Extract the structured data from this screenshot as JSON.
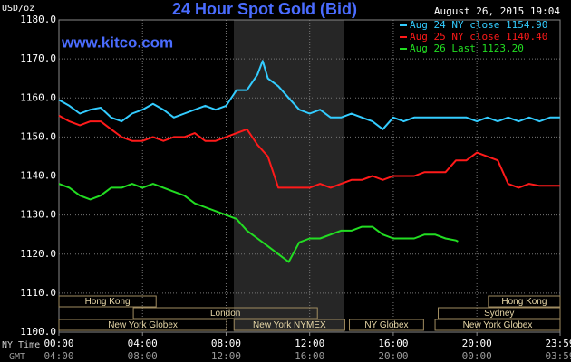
{
  "chart_data": {
    "type": "line",
    "title": "24 Hour Spot Gold (Bid)",
    "subtitle": "www.kitco.com",
    "timestamp": "August 26, 2015 19:04",
    "ylabel": "USD/oz",
    "xlabel": "NY Time",
    "x2label": "GMT",
    "grid": true,
    "legend": "upper right",
    "xlim": [
      0,
      23.983
    ],
    "ylim": [
      1100,
      1180
    ],
    "yticks": [
      {
        "value": 1100,
        "label": "1100.0"
      },
      {
        "value": 1110,
        "label": "1110.0"
      },
      {
        "value": 1120,
        "label": "1120.0"
      },
      {
        "value": 1130,
        "label": "1130.0"
      },
      {
        "value": 1140,
        "label": "1140.0"
      },
      {
        "value": 1150,
        "label": "1150.0"
      },
      {
        "value": 1160,
        "label": "1160.0"
      },
      {
        "value": 1170,
        "label": "1170.0"
      },
      {
        "value": 1180,
        "label": "1180.0"
      }
    ],
    "xticks": [
      {
        "value": 0,
        "label": "00:00"
      },
      {
        "value": 4,
        "label": "04:00"
      },
      {
        "value": 8,
        "label": "08:00"
      },
      {
        "value": 12,
        "label": "12:00"
      },
      {
        "value": 16,
        "label": "16:00"
      },
      {
        "value": 20,
        "label": "20:00"
      },
      {
        "value": 23.983,
        "label": "23:59"
      }
    ],
    "x2ticks": [
      {
        "value": 0,
        "label": "04:00"
      },
      {
        "value": 4,
        "label": "08:00"
      },
      {
        "value": 8,
        "label": "12:00"
      },
      {
        "value": 12,
        "label": "16:00"
      },
      {
        "value": 16,
        "label": "20:00"
      },
      {
        "value": 20,
        "label": "00:00"
      },
      {
        "value": 23.983,
        "label": "03:59"
      }
    ],
    "sessions": [
      [
        {
          "name": "Hong Kong",
          "start": 0,
          "end": 4.65
        },
        {
          "name": "Hong Kong",
          "start": 20.55,
          "end": 23.983
        }
      ],
      [
        {
          "name": "London",
          "start": 3.56,
          "end": 12.37
        },
        {
          "name": "Sydney",
          "start": 18.15,
          "end": 23.983
        }
      ],
      [
        {
          "name": "New York Globex",
          "start": 0,
          "end": 8.03
        },
        {
          "name": "New York NYMEX",
          "start": 8.38,
          "end": 13.68
        },
        {
          "name": "NY Globex",
          "start": 13.9,
          "end": 17.45
        },
        {
          "name": "New York Globex",
          "start": 18.0,
          "end": 23.983
        }
      ]
    ],
    "series": [
      {
        "name": "Aug 24 NY close 1154.90",
        "color": "#33ccff",
        "x": [
          0,
          0.5,
          1,
          1.5,
          2,
          2.5,
          3,
          3.5,
          4,
          4.5,
          5,
          5.5,
          6,
          6.5,
          7,
          7.5,
          8,
          8.5,
          9,
          9.5,
          9.75,
          10,
          10.5,
          11,
          11.5,
          12,
          12.5,
          13,
          13.5,
          14,
          14.5,
          15,
          15.5,
          16,
          16.5,
          17,
          17.5,
          18,
          18.5,
          19,
          19.5,
          20,
          20.5,
          21,
          21.5,
          22,
          22.5,
          23,
          23.5,
          23.98
        ],
        "values": [
          1159.5,
          1158,
          1156,
          1157,
          1157.5,
          1155,
          1154,
          1156,
          1157,
          1158.5,
          1157,
          1155,
          1156,
          1157,
          1158,
          1157,
          1158,
          1162,
          1162,
          1166,
          1169.5,
          1165,
          1163,
          1160,
          1157,
          1156,
          1157,
          1155,
          1155,
          1156,
          1155,
          1154,
          1152,
          1155,
          1154,
          1155,
          1155,
          1155,
          1155,
          1155,
          1155,
          1154,
          1155,
          1154,
          1155,
          1154,
          1155,
          1154,
          1155,
          1155
        ]
      },
      {
        "name": "Aug 25 NY close 1140.40",
        "color": "#ff1a1a",
        "x": [
          0,
          0.5,
          1,
          1.5,
          2,
          2.5,
          3,
          3.5,
          4,
          4.5,
          5,
          5.5,
          6,
          6.5,
          7,
          7.5,
          8,
          8.5,
          9,
          9.5,
          10,
          10.5,
          11,
          11.5,
          12,
          12.5,
          13,
          13.5,
          14,
          14.5,
          15,
          15.5,
          16,
          16.5,
          17,
          17.5,
          18,
          18.5,
          19,
          19.5,
          20,
          20.5,
          21,
          21.5,
          22,
          22.5,
          23,
          23.5,
          23.98
        ],
        "values": [
          1155.5,
          1154,
          1153,
          1154,
          1154,
          1152,
          1150,
          1149,
          1149,
          1150,
          1149,
          1150,
          1150,
          1151,
          1149,
          1149,
          1150,
          1151,
          1152,
          1148,
          1145,
          1137,
          1137,
          1137,
          1137,
          1138,
          1137,
          1138,
          1139,
          1139,
          1140,
          1139,
          1140,
          1140,
          1140,
          1141,
          1141,
          1141,
          1144,
          1144,
          1146,
          1145,
          1144,
          1138,
          1137,
          1138,
          1137.5,
          1137.5,
          1137.5
        ]
      },
      {
        "name": "Aug 26 Last 1123.20",
        "color": "#22dd22",
        "x": [
          0,
          0.5,
          1,
          1.5,
          2,
          2.5,
          3,
          3.5,
          4,
          4.5,
          5,
          5.5,
          6,
          6.5,
          7,
          7.5,
          8,
          8.5,
          9,
          9.5,
          10,
          10.5,
          11,
          11.5,
          12,
          12.5,
          13,
          13.5,
          14,
          14.5,
          15,
          15.5,
          16,
          16.5,
          17,
          17.5,
          18,
          18.5,
          19,
          19.1
        ],
        "values": [
          1138,
          1137,
          1135,
          1134,
          1135,
          1137,
          1137,
          1138,
          1137,
          1138,
          1137,
          1136,
          1135,
          1133,
          1132,
          1131,
          1130,
          1129,
          1126,
          1124,
          1122,
          1120,
          1118,
          1123,
          1124,
          1124,
          1125,
          1126,
          1126,
          1127,
          1127,
          1125,
          1124,
          1124,
          1124,
          1125,
          1125,
          1124,
          1123.5,
          1123.2
        ]
      }
    ]
  }
}
